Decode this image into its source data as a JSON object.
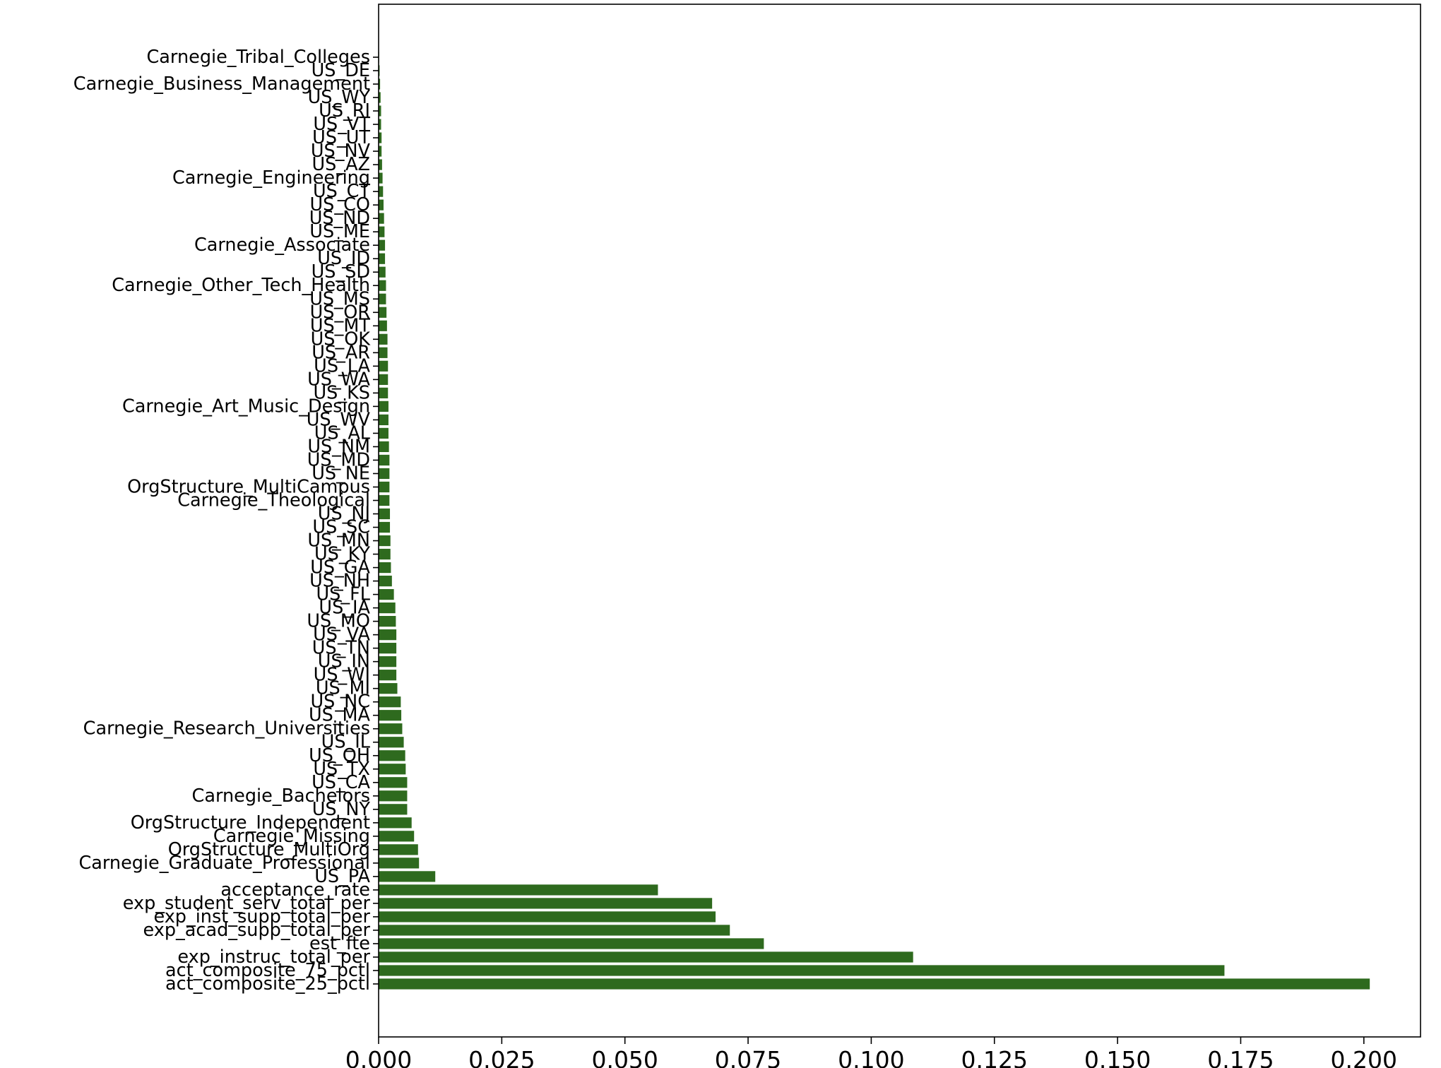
{
  "chart_data": {
    "type": "bar",
    "orientation": "horizontal",
    "bar_color": "#2e6a1e",
    "title": "",
    "xlabel": "",
    "ylabel": "",
    "xlim": [
      0,
      0.2115
    ],
    "xticks": [
      0.0,
      0.025,
      0.05,
      0.075,
      0.1,
      0.125,
      0.15,
      0.175,
      0.2
    ],
    "xtick_labels": [
      "0.000",
      "0.025",
      "0.050",
      "0.075",
      "0.100",
      "0.125",
      "0.150",
      "0.175",
      "0.200"
    ],
    "grid": false,
    "categories": [
      "act_composite_25_pctl",
      "act_composite_75_pctl",
      "exp_instruc_total_per",
      "est_fte",
      "exp_acad_supp_total_per",
      "exp_inst_supp_total_per",
      "exp_student_serv_total_per",
      "acceptance_rate",
      "US_PA",
      "Carnegie_Graduate_Professional",
      "OrgStructure_MultiOrg",
      "Carnegie_Missing",
      "OrgStructure_Independent",
      "US_NY",
      "Carnegie_Bachelors",
      "US_CA",
      "US_TX",
      "US_OH",
      "US_IL",
      "Carnegie_Research_Universities",
      "US_MA",
      "US_NC",
      "US_MI",
      "US_WI",
      "US_IN",
      "US_TN",
      "US_VA",
      "US_MO",
      "US_IA",
      "US_FL",
      "US_NH",
      "US_GA",
      "US_KY",
      "US_MN",
      "US_SC",
      "US_NJ",
      "Carnegie_Theological",
      "OrgStructure_MultiCampus",
      "US_NE",
      "US_MD",
      "US_NM",
      "US_AL",
      "US_WV",
      "Carnegie_Art_Music_Design",
      "US_KS",
      "US_WA",
      "US_LA",
      "US_AR",
      "US_OK",
      "US_MT",
      "US_OR",
      "US_MS",
      "Carnegie_Other_Tech_Health",
      "US_SD",
      "US_ID",
      "Carnegie_Associate",
      "US_ME",
      "US_ND",
      "US_CO",
      "US_CT",
      "Carnegie_Engineering",
      "US_AZ",
      "US_NV",
      "US_UT",
      "US_VT",
      "US_RI",
      "US_WY",
      "Carnegie_Business_Management",
      "US_DE",
      "Carnegie_Tribal_Colleges"
    ],
    "values": [
      0.2012,
      0.1717,
      0.1085,
      0.0782,
      0.0713,
      0.0684,
      0.0677,
      0.0567,
      0.0115,
      0.0082,
      0.008,
      0.0072,
      0.0067,
      0.0058,
      0.0058,
      0.0058,
      0.0055,
      0.0054,
      0.0051,
      0.0048,
      0.0046,
      0.0045,
      0.0038,
      0.0036,
      0.0036,
      0.0036,
      0.0036,
      0.0035,
      0.0034,
      0.0031,
      0.0027,
      0.0025,
      0.0024,
      0.0024,
      0.0023,
      0.0023,
      0.0022,
      0.0022,
      0.0022,
      0.0022,
      0.0021,
      0.002,
      0.002,
      0.002,
      0.0019,
      0.0019,
      0.0019,
      0.0018,
      0.0018,
      0.0017,
      0.0016,
      0.0015,
      0.0015,
      0.0014,
      0.0013,
      0.0013,
      0.0012,
      0.0011,
      0.001,
      0.0009,
      0.0008,
      0.0007,
      0.0006,
      0.0006,
      0.0005,
      0.0005,
      0.0004,
      0.0003,
      0.0002,
      0.0001
    ]
  }
}
